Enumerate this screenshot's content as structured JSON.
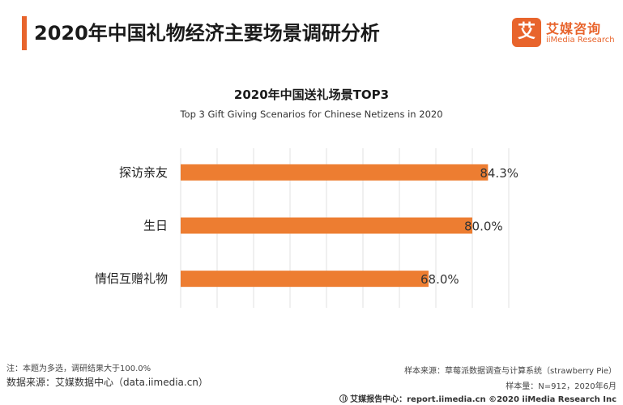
{
  "header": {
    "title": "2020年中国礼物经济主要场景调研分析",
    "logo_mark": "艾",
    "logo_cn": "艾媒咨询",
    "logo_en": "iiMedia Research"
  },
  "colors": {
    "accent": "#e8642c",
    "bar": "#ed7d31",
    "grid": "#e2e2e2"
  },
  "chart_data": {
    "type": "bar",
    "orientation": "horizontal",
    "title": "2020年中国送礼场景TOP3",
    "subtitle": "Top 3 Gift Giving Scenarios for Chinese Netizens in 2020",
    "categories": [
      "探访亲友",
      "生日",
      "情侣互赠礼物"
    ],
    "values": [
      84.3,
      80.0,
      68.0
    ],
    "value_labels": [
      "84.3%",
      "80.0%",
      "68.0%"
    ],
    "xlim": [
      0,
      90
    ],
    "grid": true,
    "xlabel": "",
    "ylabel": ""
  },
  "footer": {
    "note": "注：本题为多选，调研结果大于100.0%",
    "source": "数据来源：艾媒数据中心（data.iimedia.cn）",
    "sample_source": "样本来源：草莓派数据调查与计算系统（strawberry Pie）",
    "sample_size": "样本量：N=912，2020年6月",
    "center": "艾媒报告中心：report.iimedia.cn ©2020 iiMedia Research Inc"
  }
}
